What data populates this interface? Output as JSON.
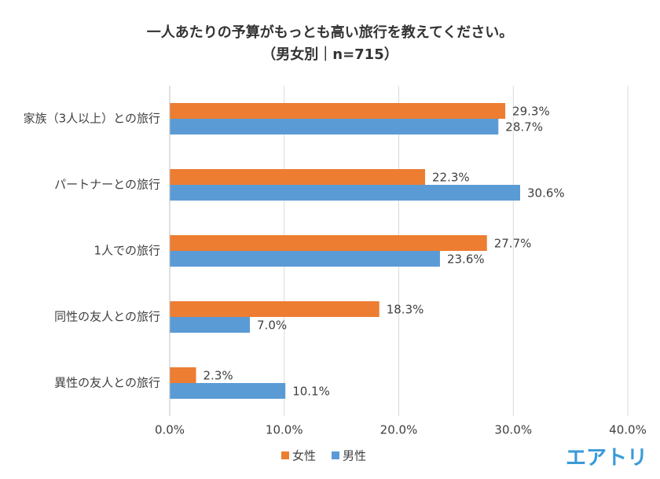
{
  "chart_data": {
    "type": "bar",
    "orientation": "horizontal",
    "title": "一人あたりの予算がもっとも高い旅行を教えてください。",
    "subtitle": "（男女別｜n=715）",
    "categories": [
      "家族（3人以上）との旅行",
      "パートナーとの旅行",
      "1人での旅行",
      "同性の友人との旅行",
      "異性の友人との旅行"
    ],
    "series": [
      {
        "name": "女性",
        "color": "#ED7D31",
        "values": [
          29.3,
          22.3,
          27.7,
          18.3,
          2.3
        ],
        "value_labels": [
          "29.3%",
          "22.3%",
          "27.7%",
          "18.3%",
          "2.3%"
        ]
      },
      {
        "name": "男性",
        "color": "#5B9BD5",
        "values": [
          28.7,
          30.6,
          23.6,
          7.0,
          10.1
        ],
        "value_labels": [
          "28.7%",
          "30.6%",
          "23.6%",
          "7.0%",
          "10.1%"
        ]
      }
    ],
    "xlim": [
      0,
      40
    ],
    "xticks": [
      {
        "value": 0,
        "label": "0.0%"
      },
      {
        "value": 10,
        "label": "10.0%"
      },
      {
        "value": 20,
        "label": "20.0%"
      },
      {
        "value": 30,
        "label": "30.0%"
      },
      {
        "value": 40,
        "label": "40.0%"
      }
    ],
    "grid": true,
    "legend": "bottom",
    "brand": "エアトリ"
  }
}
